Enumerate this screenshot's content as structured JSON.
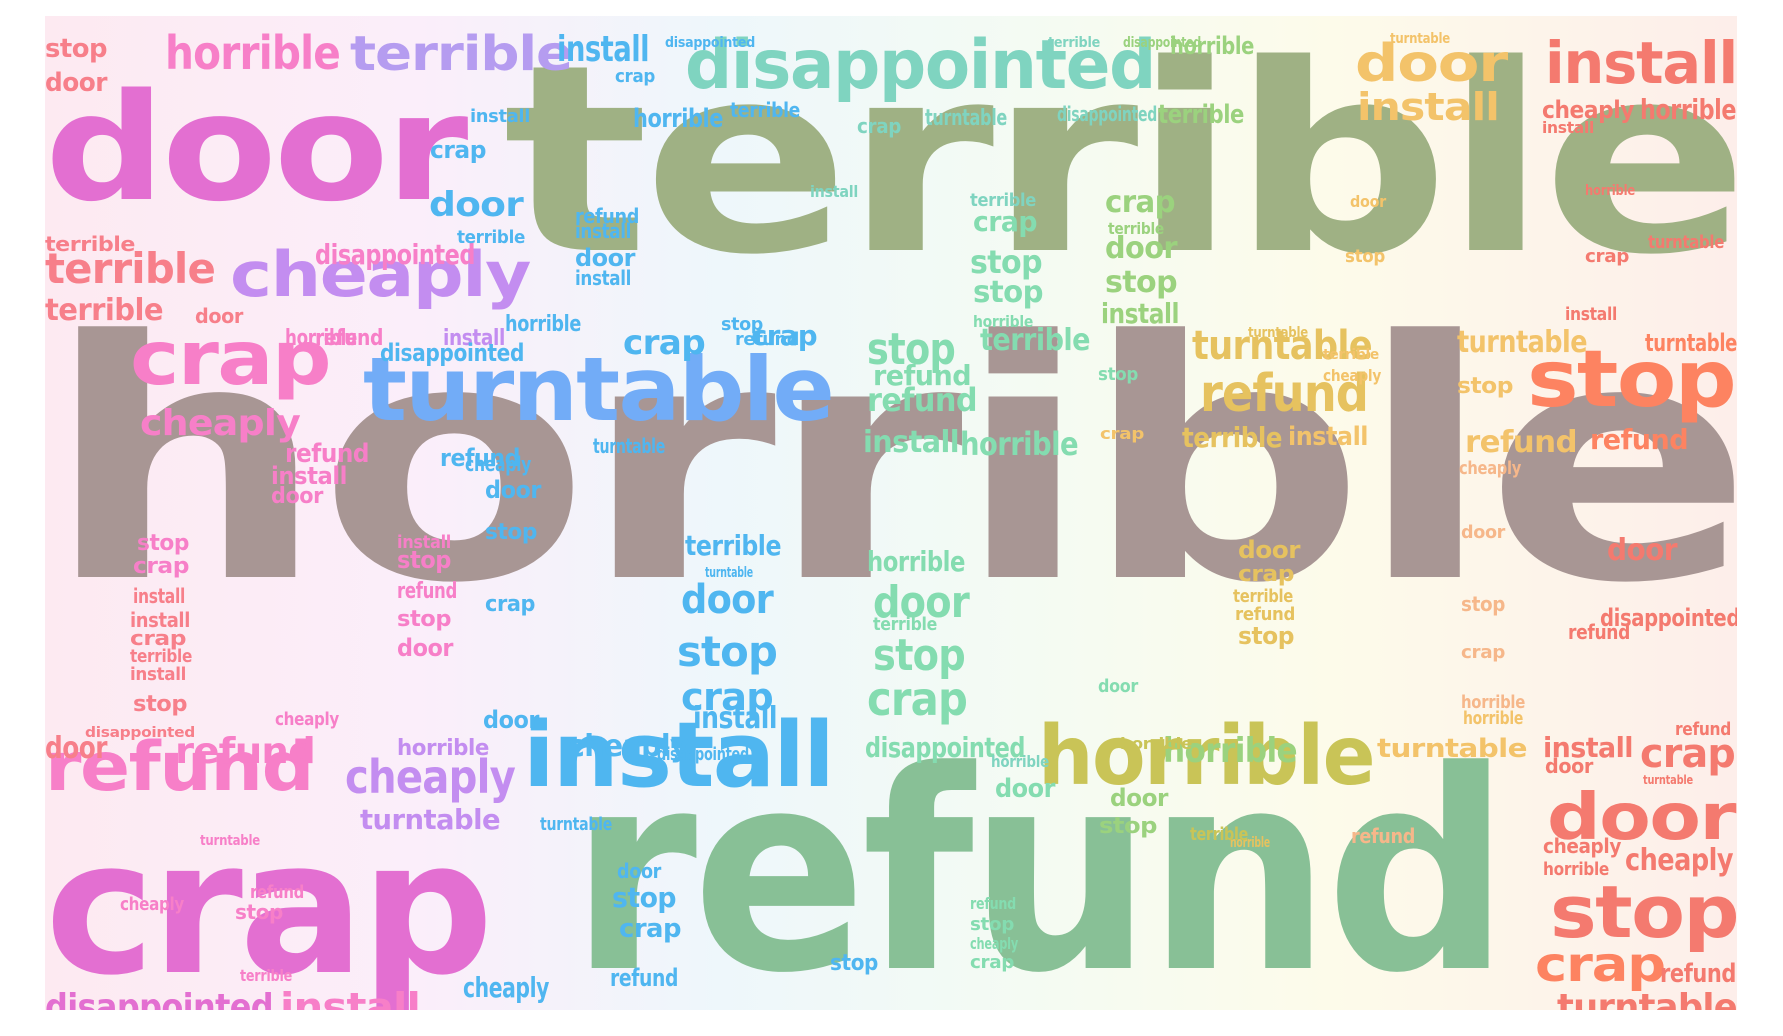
{
  "colors": {
    "grey": "#a89694",
    "sage": "#9fb184",
    "green": "#88c096",
    "magenta": "#e36fd1",
    "pink": "#f77fc8",
    "violet": "#c38df0",
    "lavender": "#b59cf0",
    "blue": "#72acf7",
    "sky": "#4fb6f0",
    "teal": "#7fd4c0",
    "mint": "#84dcb0",
    "olive": "#c9c457",
    "gold": "#e6c25f",
    "amber": "#f3c36a",
    "orange": "#fd8361",
    "coral": "#f47a6f",
    "salmon": "#f77f8a",
    "lime": "#9bd27e",
    "peach": "#f6b78a"
  },
  "words": {
    "w1": {
      "text": "horrible",
      "color": "grey"
    },
    "w2": {
      "text": "terrible",
      "color": "sage"
    },
    "w3": {
      "text": "refund",
      "color": "green"
    },
    "w4": {
      "text": "door",
      "color": "magenta"
    },
    "w5": {
      "text": "crap",
      "color": "magenta"
    },
    "w6": {
      "text": "turntable",
      "color": "blue"
    },
    "w7": {
      "text": "install",
      "color": "sky"
    },
    "w8": {
      "text": "disappointed",
      "color": "teal"
    },
    "w9": {
      "text": "horrible",
      "color": "olive"
    },
    "w10": {
      "text": "cheaply",
      "color": "violet"
    },
    "w11": {
      "text": "refund",
      "color": "pink"
    },
    "w12": {
      "text": "crap",
      "color": "pink"
    },
    "w13": {
      "text": "terrible",
      "color": "lavender"
    },
    "w14": {
      "text": "horrible",
      "color": "pink"
    },
    "w15": {
      "text": "install",
      "color": "coral"
    },
    "w16": {
      "text": "stop",
      "color": "orange"
    },
    "w17": {
      "text": "door",
      "color": "coral"
    },
    "w18": {
      "text": "stop",
      "color": "coral"
    },
    "w19": {
      "text": "crap",
      "color": "orange"
    },
    "w20": {
      "text": "door",
      "color": "amber"
    },
    "w21": {
      "text": "refund",
      "color": "gold"
    },
    "w22": {
      "text": "turntable",
      "color": "gold"
    },
    "w23": {
      "text": "install",
      "color": "amber"
    },
    "w24": {
      "text": "terrible",
      "color": "salmon"
    },
    "w25": {
      "text": "cheaply",
      "color": "violet"
    },
    "w26": {
      "text": "cheaply",
      "color": "pink"
    },
    "w27": {
      "text": "disappointed",
      "color": "magenta"
    },
    "w28": {
      "text": "install",
      "color": "pink"
    },
    "w29": {
      "text": "refund",
      "color": "pink"
    },
    "w30": {
      "text": "crap",
      "color": "sky"
    },
    "w31": {
      "text": "stop",
      "color": "mint"
    },
    "w32": {
      "text": "door",
      "color": "mint"
    },
    "w33": {
      "text": "stop",
      "color": "mint"
    },
    "w34": {
      "text": "crap",
      "color": "mint"
    },
    "w35": {
      "text": "stop",
      "color": "sky"
    },
    "w36": {
      "text": "door",
      "color": "sky"
    },
    "w37": {
      "text": "crap",
      "color": "sky"
    },
    "w38": {
      "text": "cheaply",
      "color": "sky"
    },
    "w39": {
      "text": "refund",
      "color": "mint"
    },
    "w40": {
      "text": "stop",
      "color": "mint"
    },
    "w41": {
      "text": "terrible",
      "color": "mint"
    },
    "w42": {
      "text": "horrible",
      "color": "mint"
    },
    "w43": {
      "text": "install",
      "color": "mint"
    },
    "w44": {
      "text": "disappointed",
      "color": "mint"
    },
    "w45": {
      "text": "stop",
      "color": "lime"
    },
    "w46": {
      "text": "door",
      "color": "lime"
    },
    "w47": {
      "text": "crap",
      "color": "lime"
    },
    "w48": {
      "text": "install",
      "color": "lime"
    },
    "w49": {
      "text": "terrible",
      "color": "lime"
    },
    "w50": {
      "text": "horrible",
      "color": "lime"
    },
    "w51": {
      "text": "refund",
      "color": "amber"
    },
    "w52": {
      "text": "terrible",
      "color": "gold"
    },
    "w53": {
      "text": "install",
      "color": "amber"
    },
    "w54": {
      "text": "turntable",
      "color": "amber"
    },
    "w55": {
      "text": "turntable",
      "color": "orange"
    },
    "w56": {
      "text": "refund",
      "color": "orange"
    },
    "w57": {
      "text": "door",
      "color": "coral"
    },
    "w58": {
      "text": "disappointed",
      "color": "coral"
    },
    "w59": {
      "text": "cheaply",
      "color": "coral"
    },
    "w60": {
      "text": "refund",
      "color": "coral"
    },
    "w61": {
      "text": "turntable",
      "color": "coral"
    },
    "w62": {
      "text": "horrible",
      "color": "coral"
    },
    "w63": {
      "text": "cheaply",
      "color": "coral"
    },
    "w64": {
      "text": "install",
      "color": "coral"
    },
    "w65": {
      "text": "crap",
      "color": "coral"
    },
    "w66": {
      "text": "disappointed",
      "color": "pink"
    },
    "w67": {
      "text": "install",
      "color": "violet"
    },
    "w68": {
      "text": "terrible",
      "color": "salmon"
    },
    "w69": {
      "text": "terrible",
      "color": "salmon"
    },
    "w70": {
      "text": "door",
      "color": "salmon"
    },
    "w71": {
      "text": "stop",
      "color": "salmon"
    },
    "w72": {
      "text": "door",
      "color": "salmon"
    },
    "w73": {
      "text": "refund",
      "color": "pink"
    },
    "w74": {
      "text": "horrible",
      "color": "pink"
    },
    "w75": {
      "text": "install",
      "color": "pink"
    },
    "w76": {
      "text": "door",
      "color": "pink"
    },
    "w77": {
      "text": "stop",
      "color": "pink"
    },
    "w78": {
      "text": "crap",
      "color": "pink"
    },
    "w79": {
      "text": "install",
      "color": "salmon"
    },
    "w80": {
      "text": "install",
      "color": "salmon"
    },
    "w81": {
      "text": "crap",
      "color": "salmon"
    },
    "w82": {
      "text": "terrible",
      "color": "salmon"
    },
    "w83": {
      "text": "install",
      "color": "salmon"
    },
    "w84": {
      "text": "stop",
      "color": "salmon"
    },
    "w85": {
      "text": "install",
      "color": "pink"
    },
    "w86": {
      "text": "stop",
      "color": "pink"
    },
    "w87": {
      "text": "refund",
      "color": "pink"
    },
    "w88": {
      "text": "stop",
      "color": "pink"
    },
    "w89": {
      "text": "door",
      "color": "pink"
    },
    "w90": {
      "text": "cheaply",
      "color": "pink"
    },
    "w91": {
      "text": "turntable",
      "color": "violet"
    },
    "w92": {
      "text": "horrible",
      "color": "violet"
    },
    "w93": {
      "text": "refund",
      "color": "pink"
    },
    "w94": {
      "text": "stop",
      "color": "pink"
    },
    "w95": {
      "text": "cheaply",
      "color": "pink"
    },
    "w96": {
      "text": "terrible",
      "color": "pink"
    },
    "w97": {
      "text": "crap",
      "color": "sky"
    },
    "w98": {
      "text": "cheaply",
      "color": "sky"
    },
    "w99": {
      "text": "install",
      "color": "sky"
    },
    "w100": {
      "text": "turntable",
      "color": "sky"
    },
    "w101": {
      "text": "disappointed",
      "color": "sky"
    },
    "w102": {
      "text": "horrible",
      "color": "sky"
    },
    "w103": {
      "text": "terrible",
      "color": "sky"
    },
    "w104": {
      "text": "door",
      "color": "sky"
    },
    "w105": {
      "text": "stop",
      "color": "sky"
    },
    "w106": {
      "text": "crap",
      "color": "sky"
    },
    "w107": {
      "text": "door",
      "color": "sky"
    },
    "w108": {
      "text": "refund",
      "color": "sky"
    },
    "w109": {
      "text": "install",
      "color": "sky"
    },
    "w110": {
      "text": "door",
      "color": "sky"
    },
    "w111": {
      "text": "install",
      "color": "sky"
    },
    "w112": {
      "text": "horrible",
      "color": "sky"
    },
    "w113": {
      "text": "terrible",
      "color": "sky"
    },
    "w114": {
      "text": "crap",
      "color": "sky"
    },
    "w115": {
      "text": "install",
      "color": "sky"
    },
    "w116": {
      "text": "disappointed",
      "color": "sky"
    },
    "w117": {
      "text": "refund",
      "color": "sky"
    },
    "w118": {
      "text": "cheaply",
      "color": "sky"
    },
    "w119": {
      "text": "door",
      "color": "sky"
    },
    "w120": {
      "text": "stop",
      "color": "sky"
    },
    "w121": {
      "text": "crap",
      "color": "sky"
    },
    "w122": {
      "text": "turntable",
      "color": "sky"
    },
    "w123": {
      "text": "disappointed",
      "color": "sky"
    },
    "w124": {
      "text": "stop",
      "color": "sky"
    },
    "w125": {
      "text": "door",
      "color": "sky"
    },
    "w126": {
      "text": "terrible",
      "color": "sky"
    },
    "w127": {
      "text": "install",
      "color": "sky"
    },
    "w128": {
      "text": "turntable",
      "color": "sky"
    },
    "w129": {
      "text": "refund",
      "color": "sky"
    },
    "w130": {
      "text": "crap",
      "color": "sky"
    },
    "w131": {
      "text": "stop",
      "color": "sky"
    },
    "w132": {
      "text": "refund",
      "color": "mint"
    },
    "w133": {
      "text": "horrible",
      "color": "mint"
    },
    "w134": {
      "text": "terrible",
      "color": "mint"
    },
    "w135": {
      "text": "crap",
      "color": "mint"
    },
    "w136": {
      "text": "stop",
      "color": "mint"
    },
    "w137": {
      "text": "horrible",
      "color": "mint"
    },
    "w138": {
      "text": "door",
      "color": "mint"
    },
    "w139": {
      "text": "refund",
      "color": "mint"
    },
    "w140": {
      "text": "stop",
      "color": "mint"
    },
    "w141": {
      "text": "crap",
      "color": "mint"
    },
    "w142": {
      "text": "cheaply",
      "color": "mint"
    },
    "w143": {
      "text": "terrible",
      "color": "teal"
    },
    "w144": {
      "text": "horrible",
      "color": "teal"
    },
    "w145": {
      "text": "disappointed",
      "color": "teal"
    },
    "w146": {
      "text": "turntable",
      "color": "teal"
    },
    "w147": {
      "text": "crap",
      "color": "teal"
    },
    "w148": {
      "text": "terrible",
      "color": "teal"
    },
    "w149": {
      "text": "install",
      "color": "teal"
    },
    "w150": {
      "text": "horrible",
      "color": "lime"
    },
    "w151": {
      "text": "disappointed",
      "color": "lime"
    },
    "w152": {
      "text": "terrible",
      "color": "lime"
    },
    "w153": {
      "text": "door",
      "color": "lime"
    },
    "w154": {
      "text": "stop",
      "color": "lime"
    },
    "w155": {
      "text": "turntable",
      "color": "gold"
    },
    "w156": {
      "text": "horrible",
      "color": "gold"
    },
    "w157": {
      "text": "terrible",
      "color": "gold"
    },
    "w158": {
      "text": "crap",
      "color": "gold"
    },
    "w159": {
      "text": "stop",
      "color": "gold"
    },
    "w160": {
      "text": "door",
      "color": "gold"
    },
    "w161": {
      "text": "refund",
      "color": "gold"
    },
    "w162": {
      "text": "turntable",
      "color": "amber"
    },
    "w163": {
      "text": "cheaply",
      "color": "amber"
    },
    "w164": {
      "text": "stop",
      "color": "amber"
    },
    "w165": {
      "text": "door",
      "color": "amber"
    },
    "w166": {
      "text": "crap",
      "color": "amber"
    },
    "w167": {
      "text": "terrible",
      "color": "amber"
    },
    "w168": {
      "text": "stop",
      "color": "amber"
    },
    "w169": {
      "text": "horrible",
      "color": "amber"
    },
    "w170": {
      "text": "turntable",
      "color": "amber"
    },
    "w171": {
      "text": "refund",
      "color": "peach"
    },
    "w172": {
      "text": "cheaply",
      "color": "peach"
    },
    "w173": {
      "text": "door",
      "color": "peach"
    },
    "w174": {
      "text": "crap",
      "color": "peach"
    },
    "w175": {
      "text": "stop",
      "color": "peach"
    },
    "w176": {
      "text": "horrible",
      "color": "peach"
    },
    "w177": {
      "text": "install",
      "color": "coral"
    },
    "w178": {
      "text": "crap",
      "color": "coral"
    },
    "w179": {
      "text": "horrible",
      "color": "coral"
    },
    "w180": {
      "text": "turntable",
      "color": "coral"
    },
    "w181": {
      "text": "door",
      "color": "coral"
    },
    "w182": {
      "text": "refund",
      "color": "coral"
    },
    "w183": {
      "text": "cheaply",
      "color": "coral"
    },
    "w184": {
      "text": "horrible",
      "color": "coral"
    },
    "w185": {
      "text": "refund",
      "color": "coral"
    },
    "w186": {
      "text": "install",
      "color": "coral"
    },
    "w187": {
      "text": "turntable",
      "color": "coral"
    },
    "w188": {
      "text": "horrible",
      "color": "olive"
    },
    "w189": {
      "text": "terrible",
      "color": "olive"
    },
    "w190": {
      "text": "refund",
      "color": "amber"
    },
    "w191": {
      "text": "stop",
      "color": "mint"
    },
    "w192": {
      "text": "door",
      "color": "mint"
    },
    "w193": {
      "text": "refund",
      "color": "sky"
    },
    "w194": {
      "text": "cheaply",
      "color": "sky"
    },
    "w195": {
      "text": "stop",
      "color": "sky"
    },
    "w196": {
      "text": "crap",
      "color": "sky"
    },
    "w197": {
      "text": "disappointed",
      "color": "salmon"
    },
    "w198": {
      "text": "turntable",
      "color": "pink"
    },
    "w199": {
      "text": "install",
      "color": "violet"
    },
    "w200": {
      "text": "stop",
      "color": "salmon"
    },
    "w201": {
      "text": "door",
      "color": "salmon"
    },
    "w202": {
      "text": "refund",
      "color": "pink"
    },
    "w203": {
      "text": "horrible",
      "color": "pink"
    },
    "w204": {
      "text": "crap",
      "color": "pink"
    },
    "w205": {
      "text": "cheaply",
      "color": "pink"
    },
    "w206": {
      "text": "stop",
      "color": "pink"
    },
    "w207": {
      "text": "terrible",
      "color": "pink"
    },
    "w208": {
      "text": "crap",
      "color": "sky"
    },
    "w209": {
      "text": "cheaply",
      "color": "sky"
    },
    "w210": {
      "text": "refund",
      "color": "sky"
    },
    "w211": {
      "text": "stop",
      "color": "mint"
    },
    "w212": {
      "text": "crap",
      "color": "mint"
    },
    "w213": {
      "text": "cheaply",
      "color": "mint"
    },
    "w214": {
      "text": "stop",
      "color": "mint"
    },
    "w215": {
      "text": "crap",
      "color": "mint"
    },
    "w216": {
      "text": "refund",
      "color": "mint"
    },
    "w217": {
      "text": "install",
      "color": "teal"
    },
    "w218": {
      "text": "disappointed",
      "color": "teal"
    },
    "w219": {
      "text": "install",
      "color": "lime"
    },
    "w220": {
      "text": "terrible",
      "color": "lime"
    },
    "w221": {
      "text": "horrible",
      "color": "lime"
    },
    "w222": {
      "text": "turntable",
      "color": "lime"
    },
    "w223": {
      "text": "crap",
      "color": "lime"
    },
    "w224": {
      "text": "door",
      "color": "amber"
    },
    "w225": {
      "text": "disappointed",
      "color": "peach"
    },
    "w226": {
      "text": "cheaply",
      "color": "peach"
    },
    "w227": {
      "text": "stop",
      "color": "peach"
    },
    "w228": {
      "text": "refund",
      "color": "peach"
    },
    "w229": {
      "text": "horrible",
      "color": "coral"
    },
    "w230": {
      "text": "terrible",
      "color": "coral"
    }
  }
}
